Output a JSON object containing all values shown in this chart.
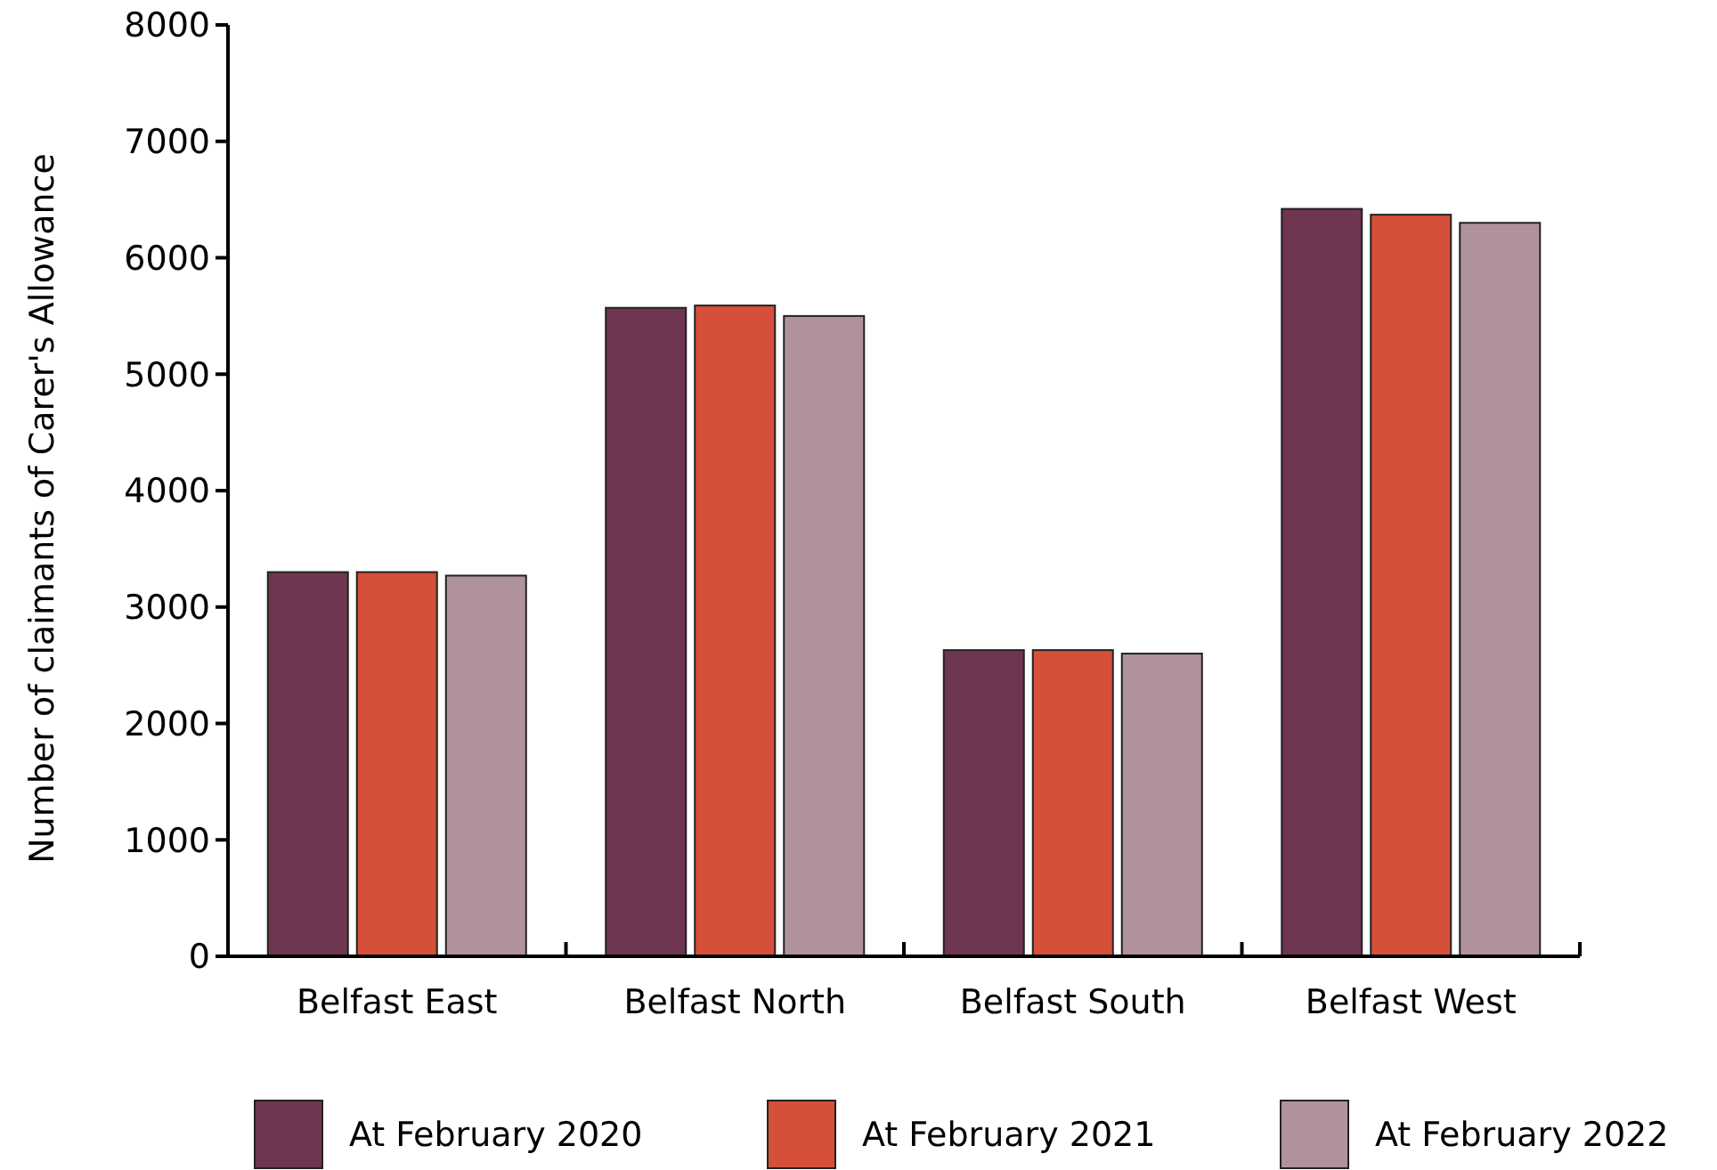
{
  "chart_data": {
    "type": "bar",
    "ylabel": "Number of claimants of Carer's Allowance",
    "categories": [
      "Belfast East",
      "Belfast North",
      "Belfast South",
      "Belfast West"
    ],
    "series": [
      {
        "name": "At February 2020",
        "color": "#6e3651",
        "values": [
          3300,
          5570,
          2630,
          6420
        ]
      },
      {
        "name": "At February 2021",
        "color": "#d64f38",
        "values": [
          3300,
          5590,
          2630,
          6370
        ]
      },
      {
        "name": "At February 2022",
        "color": "#b0929e",
        "values": [
          3270,
          5500,
          2600,
          6300
        ]
      }
    ],
    "ylim": [
      0,
      8000
    ],
    "yticks": [
      0,
      1000,
      2000,
      3000,
      4000,
      5000,
      6000,
      7000,
      8000
    ],
    "grid": false,
    "legend": "bottom"
  }
}
